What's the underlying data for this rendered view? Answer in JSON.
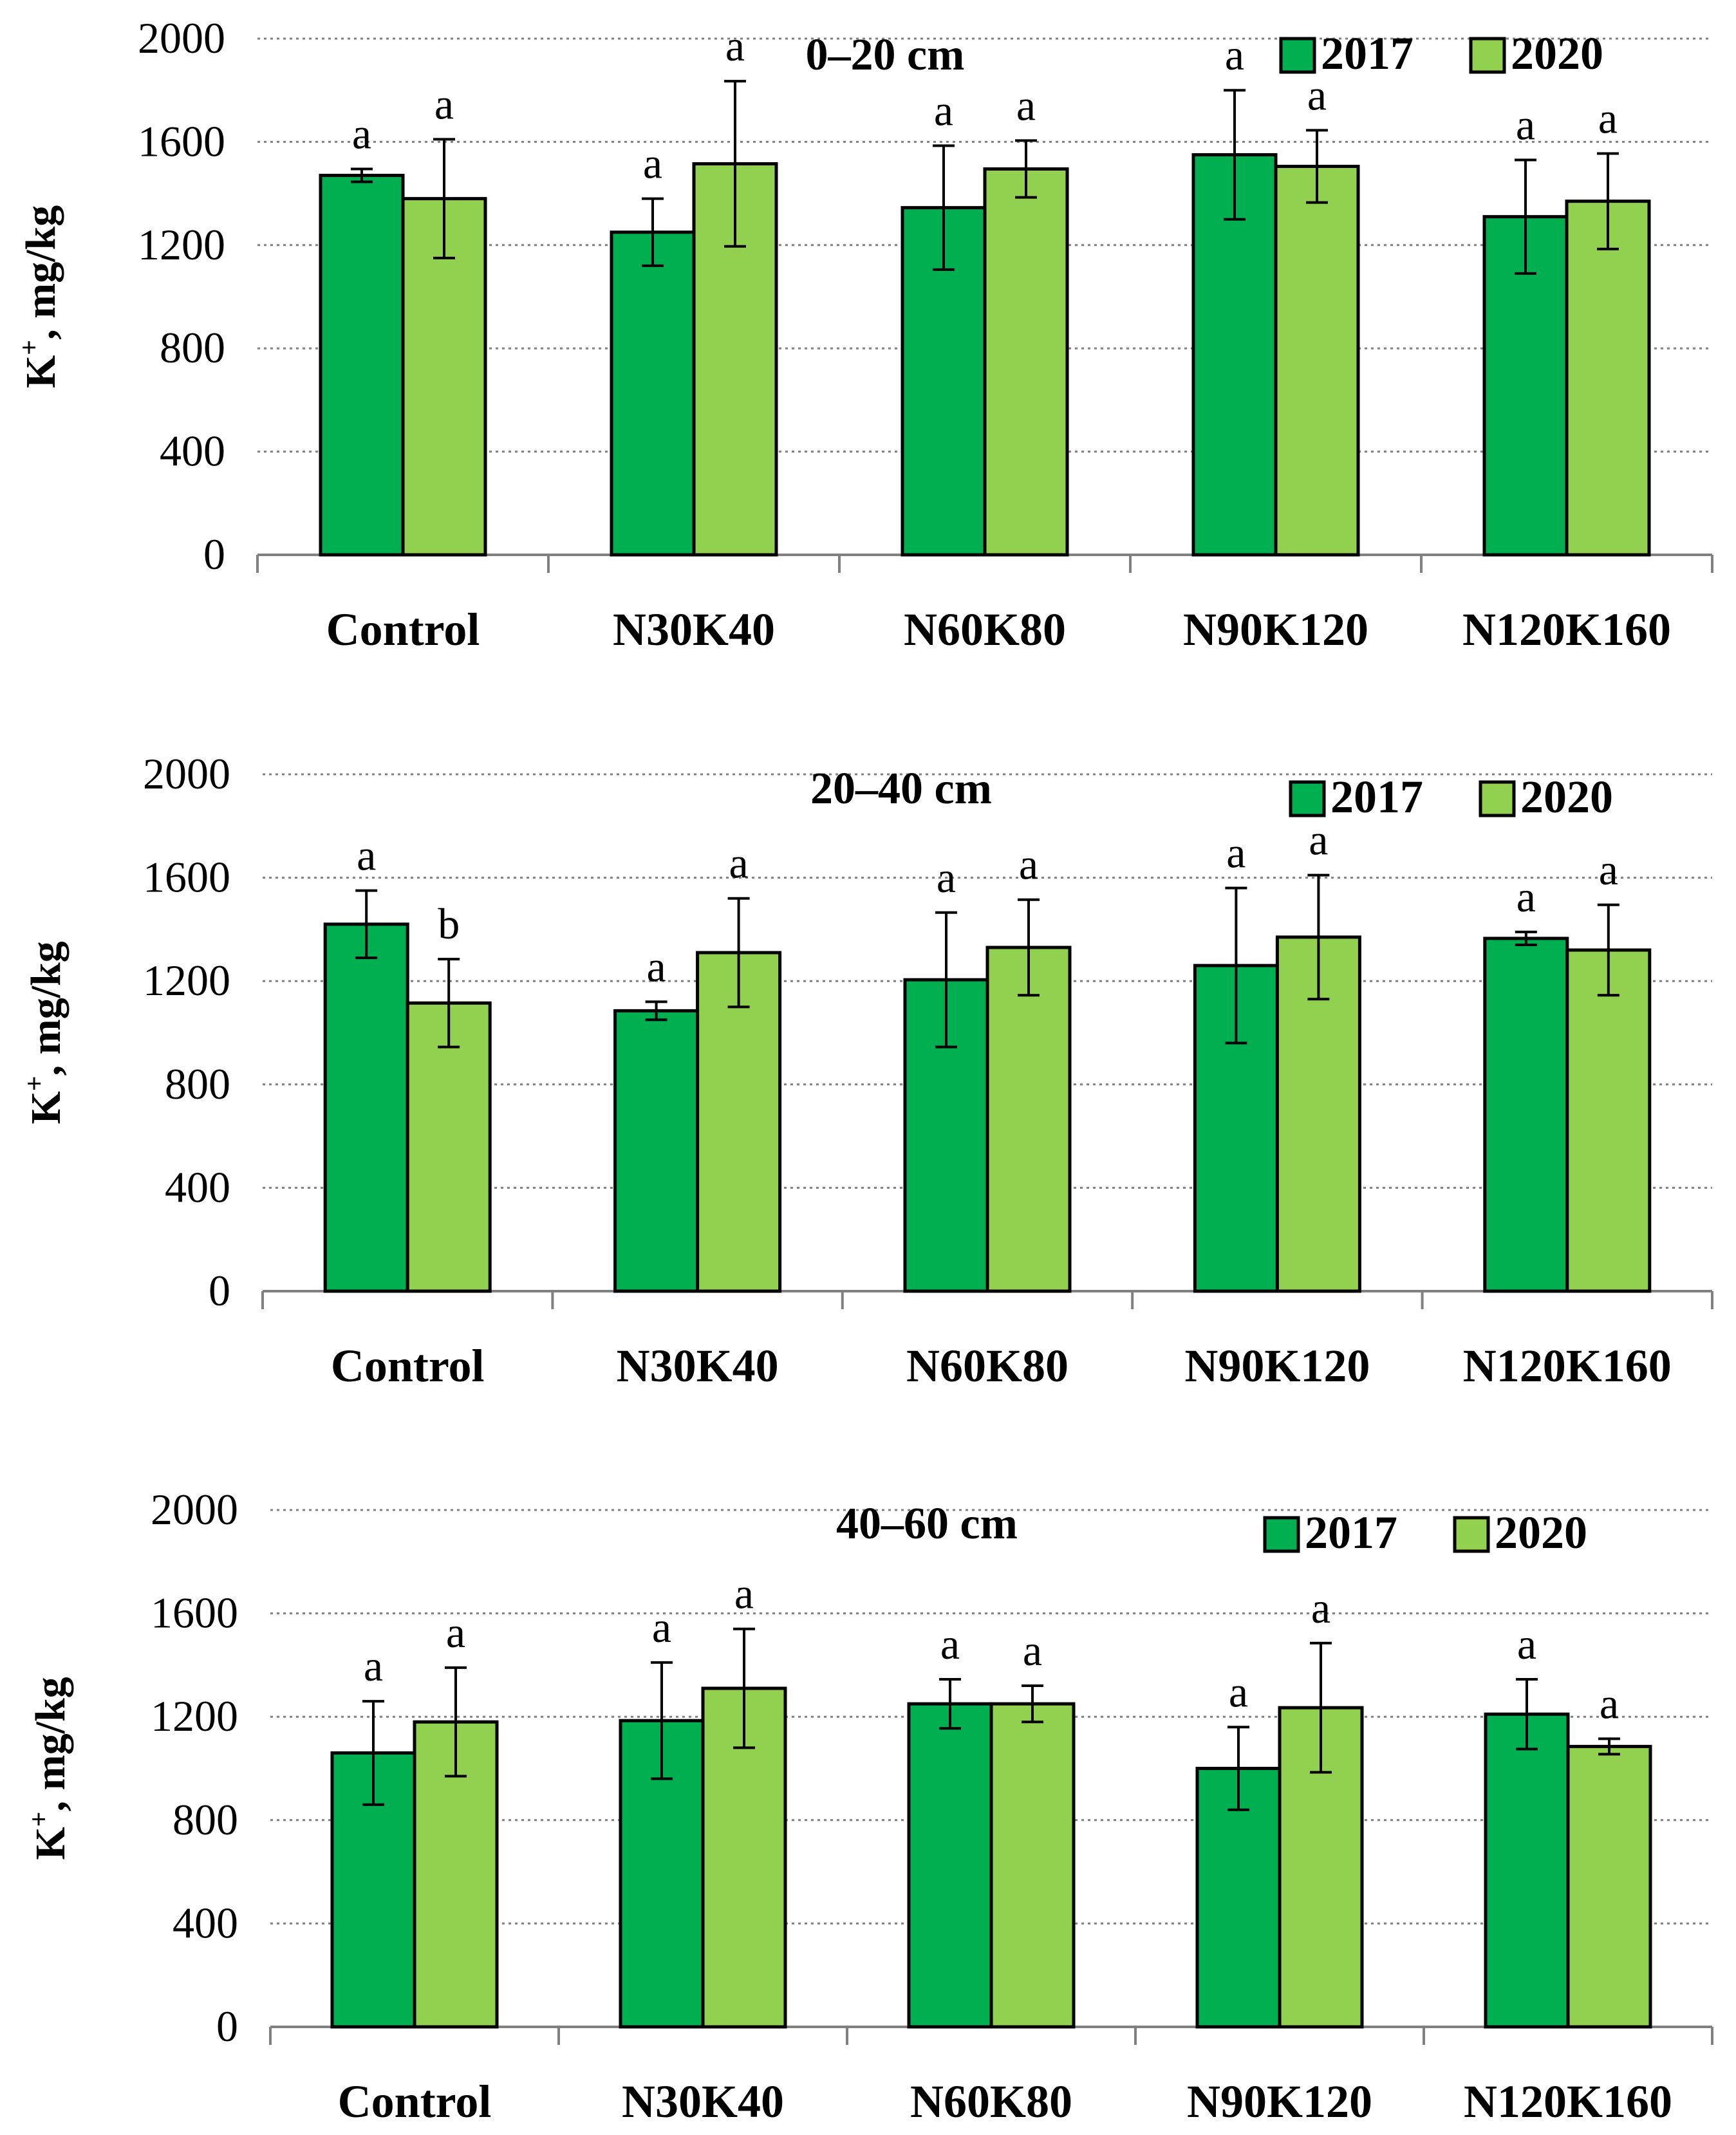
{
  "colors": {
    "series_2017": "#00b050",
    "series_2020": "#92d050",
    "grid": "#808080",
    "axis": "#808080",
    "outline": "#000000"
  },
  "chart_data": [
    {
      "type": "bar",
      "title": "0–20 cm",
      "ylabel_main": "K",
      "ylabel_sup": "+",
      "ylabel_rest": ", mg/kg",
      "ylim": [
        0,
        2000
      ],
      "yticks": [
        "0",
        "400",
        "800",
        "1200",
        "1600",
        "2000"
      ],
      "categories": [
        "Control",
        "N30K40",
        "N60K80",
        "N90K120",
        "N120K160"
      ],
      "series": [
        {
          "name": "2017",
          "values": [
            1470,
            1250,
            1345,
            1550,
            1310
          ],
          "errors": [
            25,
            130,
            240,
            250,
            220
          ],
          "sig": [
            "a",
            "a",
            "a",
            "a",
            "a"
          ]
        },
        {
          "name": "2020",
          "values": [
            1380,
            1515,
            1495,
            1505,
            1370
          ],
          "errors": [
            230,
            320,
            110,
            140,
            185
          ],
          "sig": [
            "a",
            "a",
            "a",
            "a",
            "a"
          ]
        }
      ]
    },
    {
      "type": "bar",
      "title": "20–40 cm",
      "ylabel_main": "K",
      "ylabel_sup": "+",
      "ylabel_rest": ", mg/kg",
      "ylim": [
        0,
        2000
      ],
      "yticks": [
        "0",
        "400",
        "800",
        "1200",
        "1600",
        "2000"
      ],
      "categories": [
        "Control",
        "N30K40",
        "N60K80",
        "N90K120",
        "N120K160"
      ],
      "series": [
        {
          "name": "2017",
          "values": [
            1420,
            1085,
            1205,
            1260,
            1365
          ],
          "errors": [
            130,
            35,
            260,
            300,
            25
          ],
          "sig": [
            "a",
            "a",
            "a",
            "a",
            "a"
          ]
        },
        {
          "name": "2020",
          "values": [
            1115,
            1310,
            1330,
            1370,
            1320
          ],
          "errors": [
            170,
            210,
            185,
            240,
            175
          ],
          "sig": [
            "b",
            "a",
            "a",
            "a",
            "a"
          ]
        }
      ]
    },
    {
      "type": "bar",
      "title": "40–60 cm",
      "ylabel_main": "K",
      "ylabel_sup": "+",
      "ylabel_rest": ", mg/kg",
      "ylim": [
        0,
        2000
      ],
      "yticks": [
        "0",
        "400",
        "800",
        "1200",
        "1600",
        "2000"
      ],
      "categories": [
        "Control",
        "N30K40",
        "N60K80",
        "N90K120",
        "N120K160"
      ],
      "series": [
        {
          "name": "2017",
          "values": [
            1060,
            1185,
            1250,
            1000,
            1210
          ],
          "errors": [
            200,
            225,
            95,
            160,
            135
          ],
          "sig": [
            "a",
            "a",
            "a",
            "a",
            "a"
          ]
        },
        {
          "name": "2020",
          "values": [
            1180,
            1310,
            1250,
            1235,
            1085
          ],
          "errors": [
            210,
            230,
            70,
            250,
            30
          ],
          "sig": [
            "a",
            "a",
            "a",
            "a",
            "a"
          ]
        }
      ]
    }
  ]
}
